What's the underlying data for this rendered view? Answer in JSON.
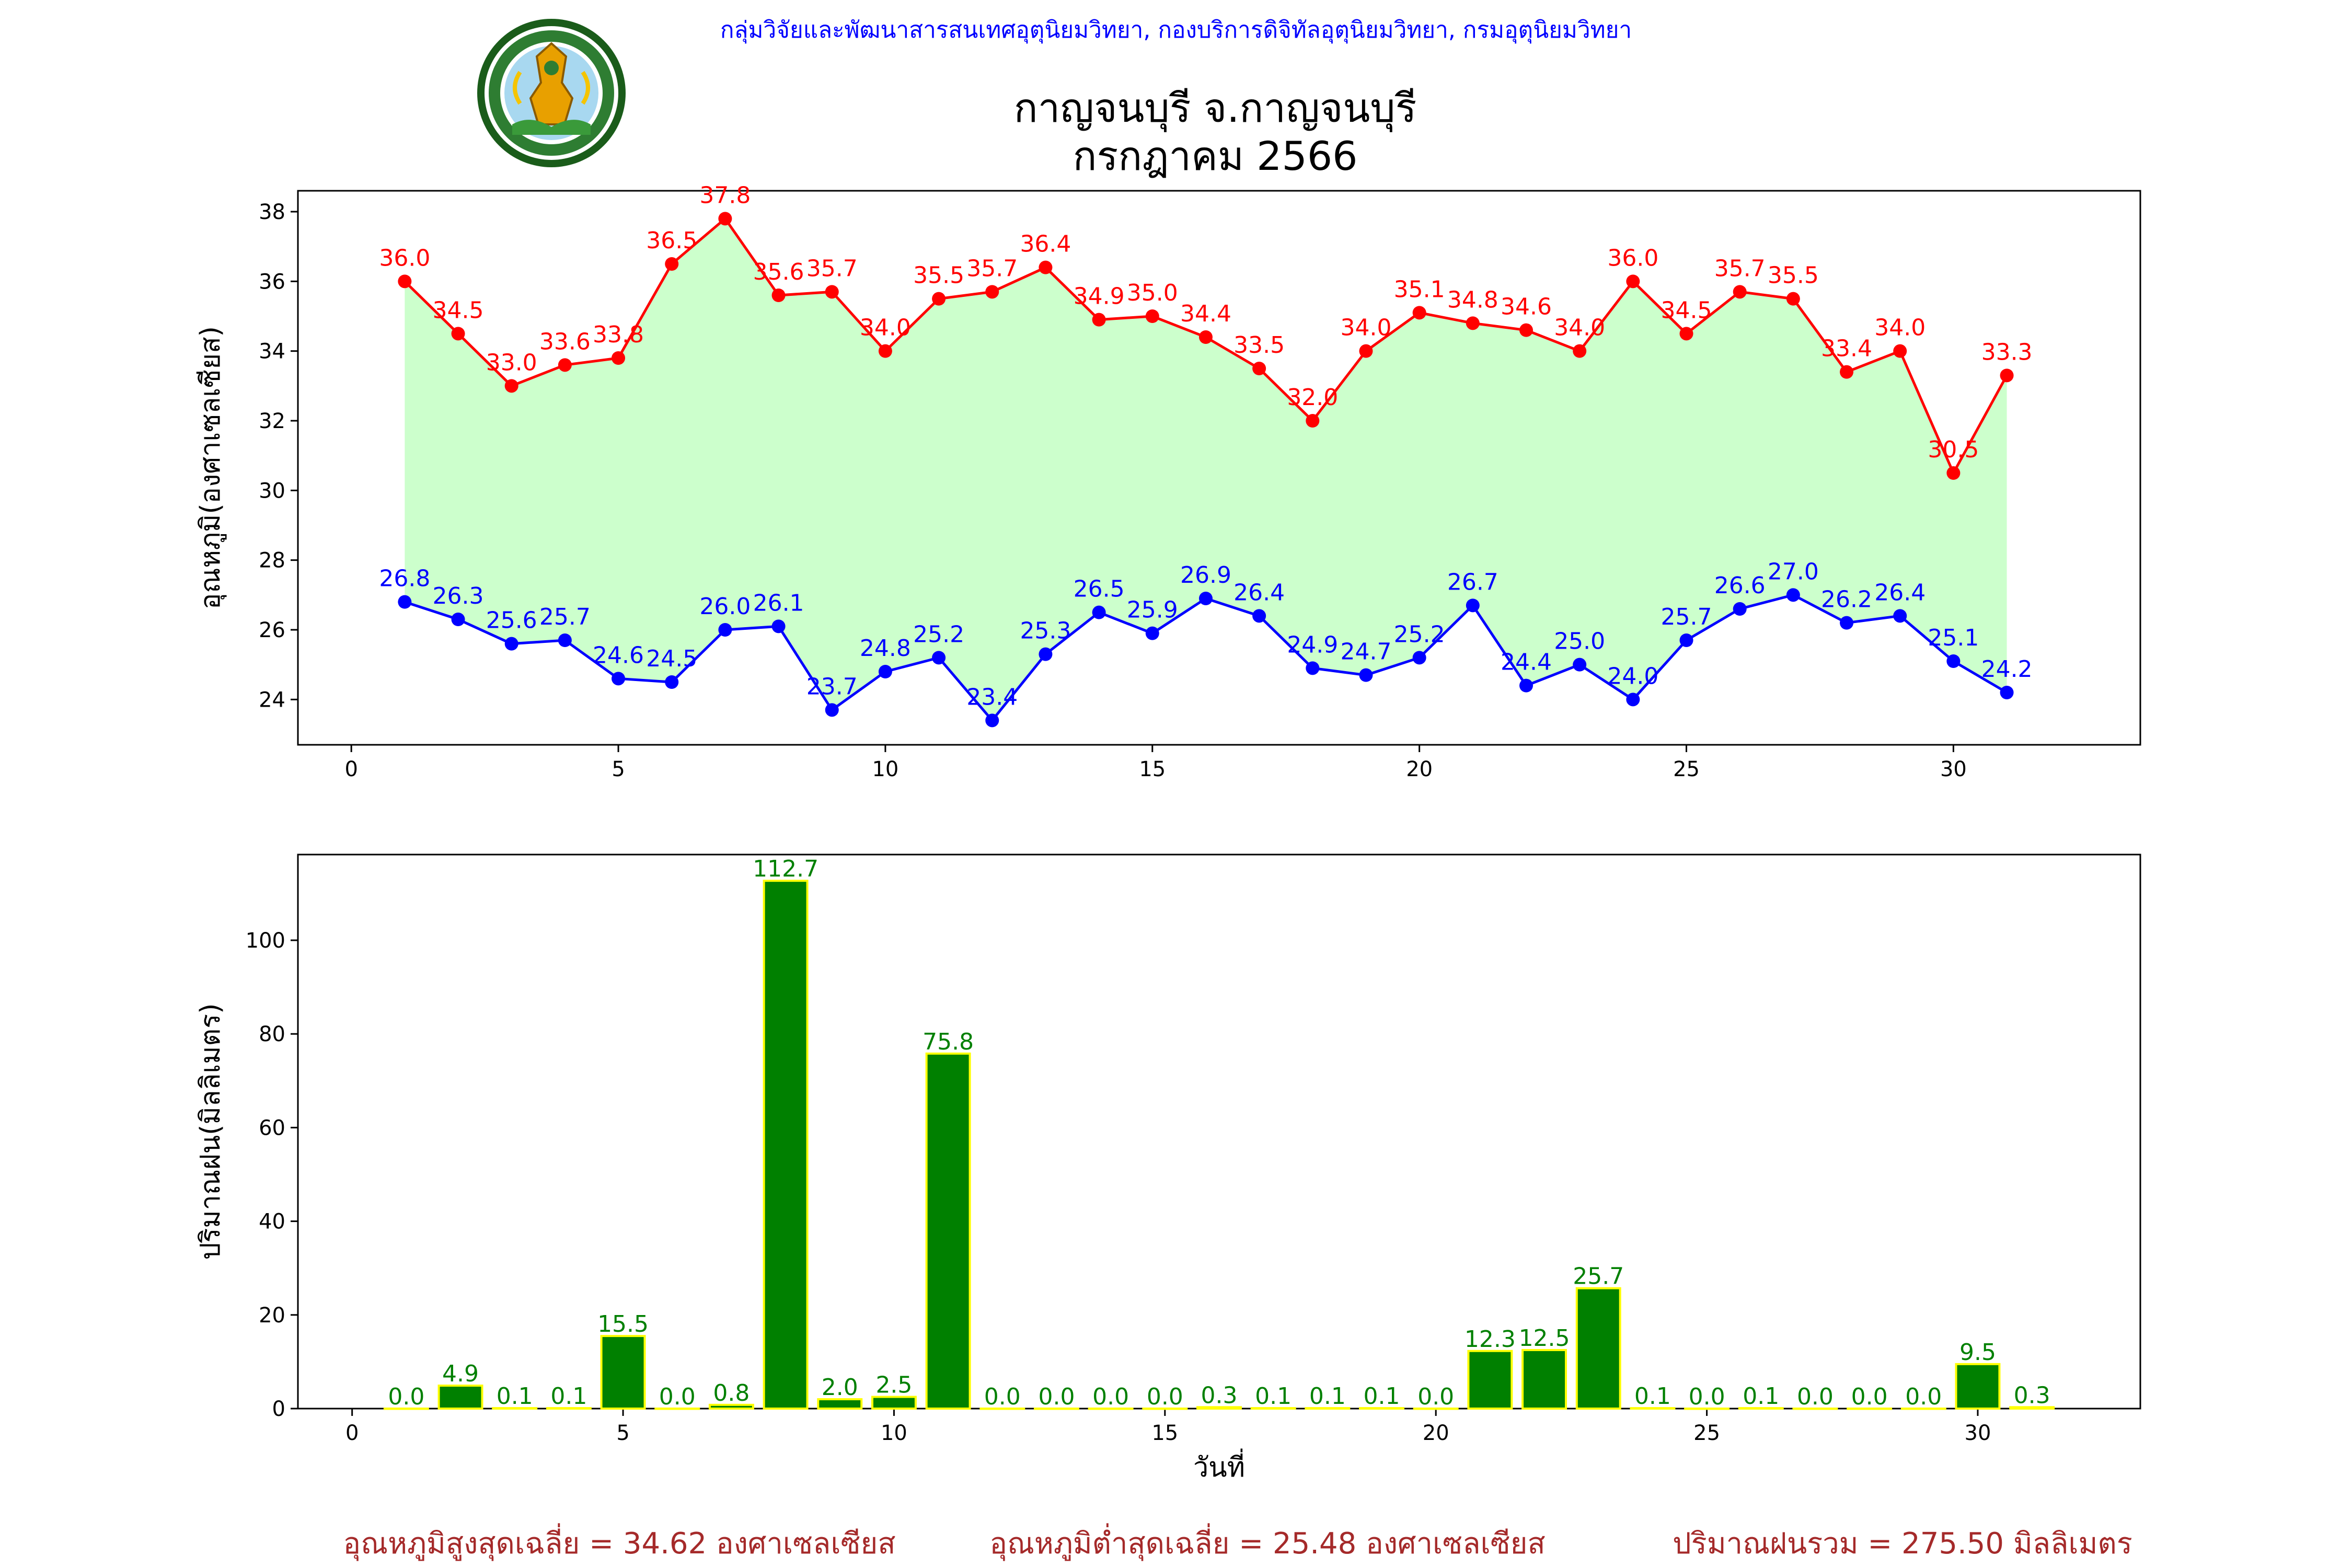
{
  "header": {
    "org_text": "กลุ่มวิจัยและพัฒนาสารสนเทศอุตุนิยมวิทยา, กองบริการดิจิทัลอุตุนิยมวิทยา, กรมอุตุนิยมวิทยา",
    "title_line1": "กาญจนบุรี จ.กาญจนบุรี",
    "title_line2": "กรกฎาคม 2566",
    "logo_text": "กรมอุตุนิยมวิทยา METEOROLOGICAL DEPARTMENT",
    "org_color": "#0000ff"
  },
  "footer": {
    "avg_max": "อุณหภูมิสูงสุดเฉลี่ย = 34.62 องศาเซลเซียส",
    "avg_min": "อุณหภูมิต่ำสุดเฉลี่ย = 25.48 องศาเซลเซียส",
    "total_rain": "ปริมาณฝนรวม = 275.50 มิลลิเมตร",
    "color": "#a52a2a"
  },
  "chart_data": [
    {
      "type": "line",
      "title": "",
      "xlabel": "",
      "ylabel": "อุณหภูมิ(องศาเซลเซียส)",
      "xlim": [
        -1,
        33.5
      ],
      "ylim": [
        22.7,
        38.6
      ],
      "xticks": [
        0,
        5,
        10,
        15,
        20,
        25,
        30
      ],
      "yticks": [
        24,
        26,
        28,
        30,
        32,
        34,
        36,
        38
      ],
      "grid": false,
      "fill_between": {
        "color": "#ccffcc"
      },
      "x": [
        1,
        2,
        3,
        4,
        5,
        6,
        7,
        8,
        9,
        10,
        11,
        12,
        13,
        14,
        15,
        16,
        17,
        18,
        19,
        20,
        21,
        22,
        23,
        24,
        25,
        26,
        27,
        28,
        29,
        30,
        31
      ],
      "series": [
        {
          "color": "#ff0000",
          "values": [
            36.0,
            34.5,
            33.0,
            33.6,
            33.8,
            36.5,
            37.8,
            35.6,
            35.7,
            34.0,
            35.5,
            35.7,
            36.4,
            34.9,
            35.0,
            34.4,
            33.5,
            32.0,
            34.0,
            35.1,
            34.8,
            34.6,
            34.0,
            36.0,
            34.5,
            35.7,
            35.5,
            33.4,
            34.0,
            30.5,
            33.3
          ]
        },
        {
          "color": "#0000ff",
          "values": [
            26.8,
            26.3,
            25.6,
            25.7,
            24.6,
            24.5,
            26.0,
            26.1,
            23.7,
            24.8,
            25.2,
            23.4,
            25.3,
            26.5,
            25.9,
            26.9,
            26.4,
            24.9,
            24.7,
            25.2,
            26.7,
            24.4,
            25.0,
            24.0,
            25.7,
            26.6,
            27.0,
            26.2,
            26.4,
            25.1,
            24.2
          ]
        }
      ]
    },
    {
      "type": "bar",
      "title": "",
      "xlabel": "วันที่",
      "ylabel": "ปริมาณฝน(มิลลิเมตร)",
      "xlim": [
        -1,
        33
      ],
      "ylim": [
        0,
        118.3
      ],
      "xticks": [
        0,
        5,
        10,
        15,
        20,
        25,
        30
      ],
      "yticks": [
        0,
        20,
        40,
        60,
        80,
        100
      ],
      "grid": false,
      "bar_color": "#008000",
      "edge_color": "#ffff00",
      "label_color": "#008000",
      "x": [
        1,
        2,
        3,
        4,
        5,
        6,
        7,
        8,
        9,
        10,
        11,
        12,
        13,
        14,
        15,
        16,
        17,
        18,
        19,
        20,
        21,
        22,
        23,
        24,
        25,
        26,
        27,
        28,
        29,
        30,
        31
      ],
      "values": [
        0.0,
        4.9,
        0.1,
        0.1,
        15.5,
        0.0,
        0.8,
        112.7,
        2.0,
        2.5,
        75.8,
        0.0,
        0.0,
        0.0,
        0.0,
        0.3,
        0.1,
        0.1,
        0.1,
        0.0,
        12.3,
        12.5,
        25.7,
        0.1,
        0.0,
        0.1,
        0.0,
        0.0,
        0.0,
        9.5,
        0.3
      ]
    }
  ]
}
